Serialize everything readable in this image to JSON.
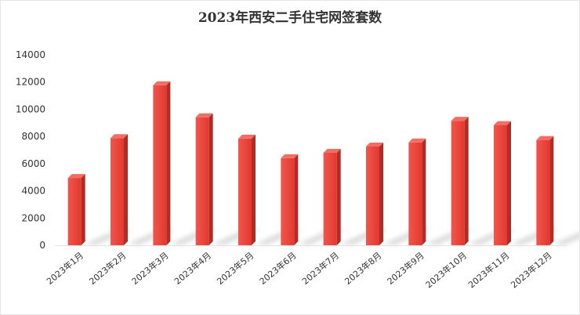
{
  "chart_data": {
    "type": "bar",
    "title": "2023年西安二手住宅网签套数",
    "xlabel": "",
    "ylabel": "",
    "categories": [
      "2023年1月",
      "2023年2月",
      "2023年3月",
      "2023年4月",
      "2023年5月",
      "2023年6月",
      "2023年7月",
      "2023年8月",
      "2023年9月",
      "2023年10月",
      "2023年11月",
      "2023年12月"
    ],
    "values": [
      4950,
      7880,
      11770,
      9410,
      7840,
      6400,
      6800,
      7260,
      7560,
      9150,
      8840,
      7740
    ],
    "yticks": [
      "0",
      "2000",
      "4000",
      "6000",
      "8000",
      "10000",
      "12000",
      "14000"
    ],
    "ylim": [
      0,
      14000
    ],
    "grid": false,
    "legend": "none",
    "colors": {
      "bar_front": "#e8453c",
      "bar_side": "#b52a23",
      "bar_top": "#f26d64",
      "shadow": "#d8d8d8"
    }
  }
}
